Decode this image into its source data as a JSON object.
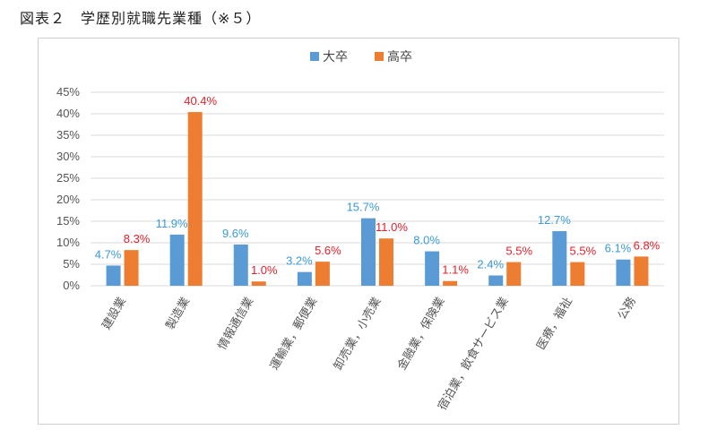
{
  "caption": "図表２　学歴別就職先業種（※５）",
  "colors": {
    "univ": "#5b9bd5",
    "high": "#ed7d31",
    "univ_label": "#3a9ad9",
    "high_label": "#e8202a",
    "grid": "#d9d9d9"
  },
  "chart_data": {
    "type": "bar",
    "title": "",
    "categories": [
      "建設業",
      "製造業",
      "情報通信業",
      "運輸業，郵便業",
      "卸売業，小売業",
      "金融業，保険業",
      "宿泊業，飲食サービス業",
      "医療，福祉",
      "公務"
    ],
    "series": [
      {
        "name": "大卒",
        "values": [
          4.7,
          11.9,
          9.6,
          3.2,
          15.7,
          8.0,
          2.4,
          12.7,
          6.1
        ],
        "labels": [
          "4.7%",
          "11.9%",
          "9.6%",
          "3.2%",
          "15.7%",
          "8.0%",
          "2.4%",
          "12.7%",
          "6.1%"
        ]
      },
      {
        "name": "高卒",
        "values": [
          8.3,
          40.4,
          1.0,
          5.6,
          11.0,
          1.1,
          5.5,
          5.5,
          6.8
        ],
        "labels": [
          "8.3%",
          "40.4%",
          "1.0%",
          "5.6%",
          "11.0%",
          "1.1%",
          "5.5%",
          "5.5%",
          "6.8%"
        ]
      }
    ],
    "y_ticks": [
      0,
      5,
      10,
      15,
      20,
      25,
      30,
      35,
      40,
      45
    ],
    "y_tick_labels": [
      "0%",
      "5%",
      "10%",
      "15%",
      "20%",
      "25%",
      "30%",
      "35%",
      "40%",
      "45%"
    ],
    "ylim": [
      0,
      45
    ],
    "xlabel": "",
    "ylabel": "",
    "grid": true,
    "legend_position": "top-center"
  }
}
